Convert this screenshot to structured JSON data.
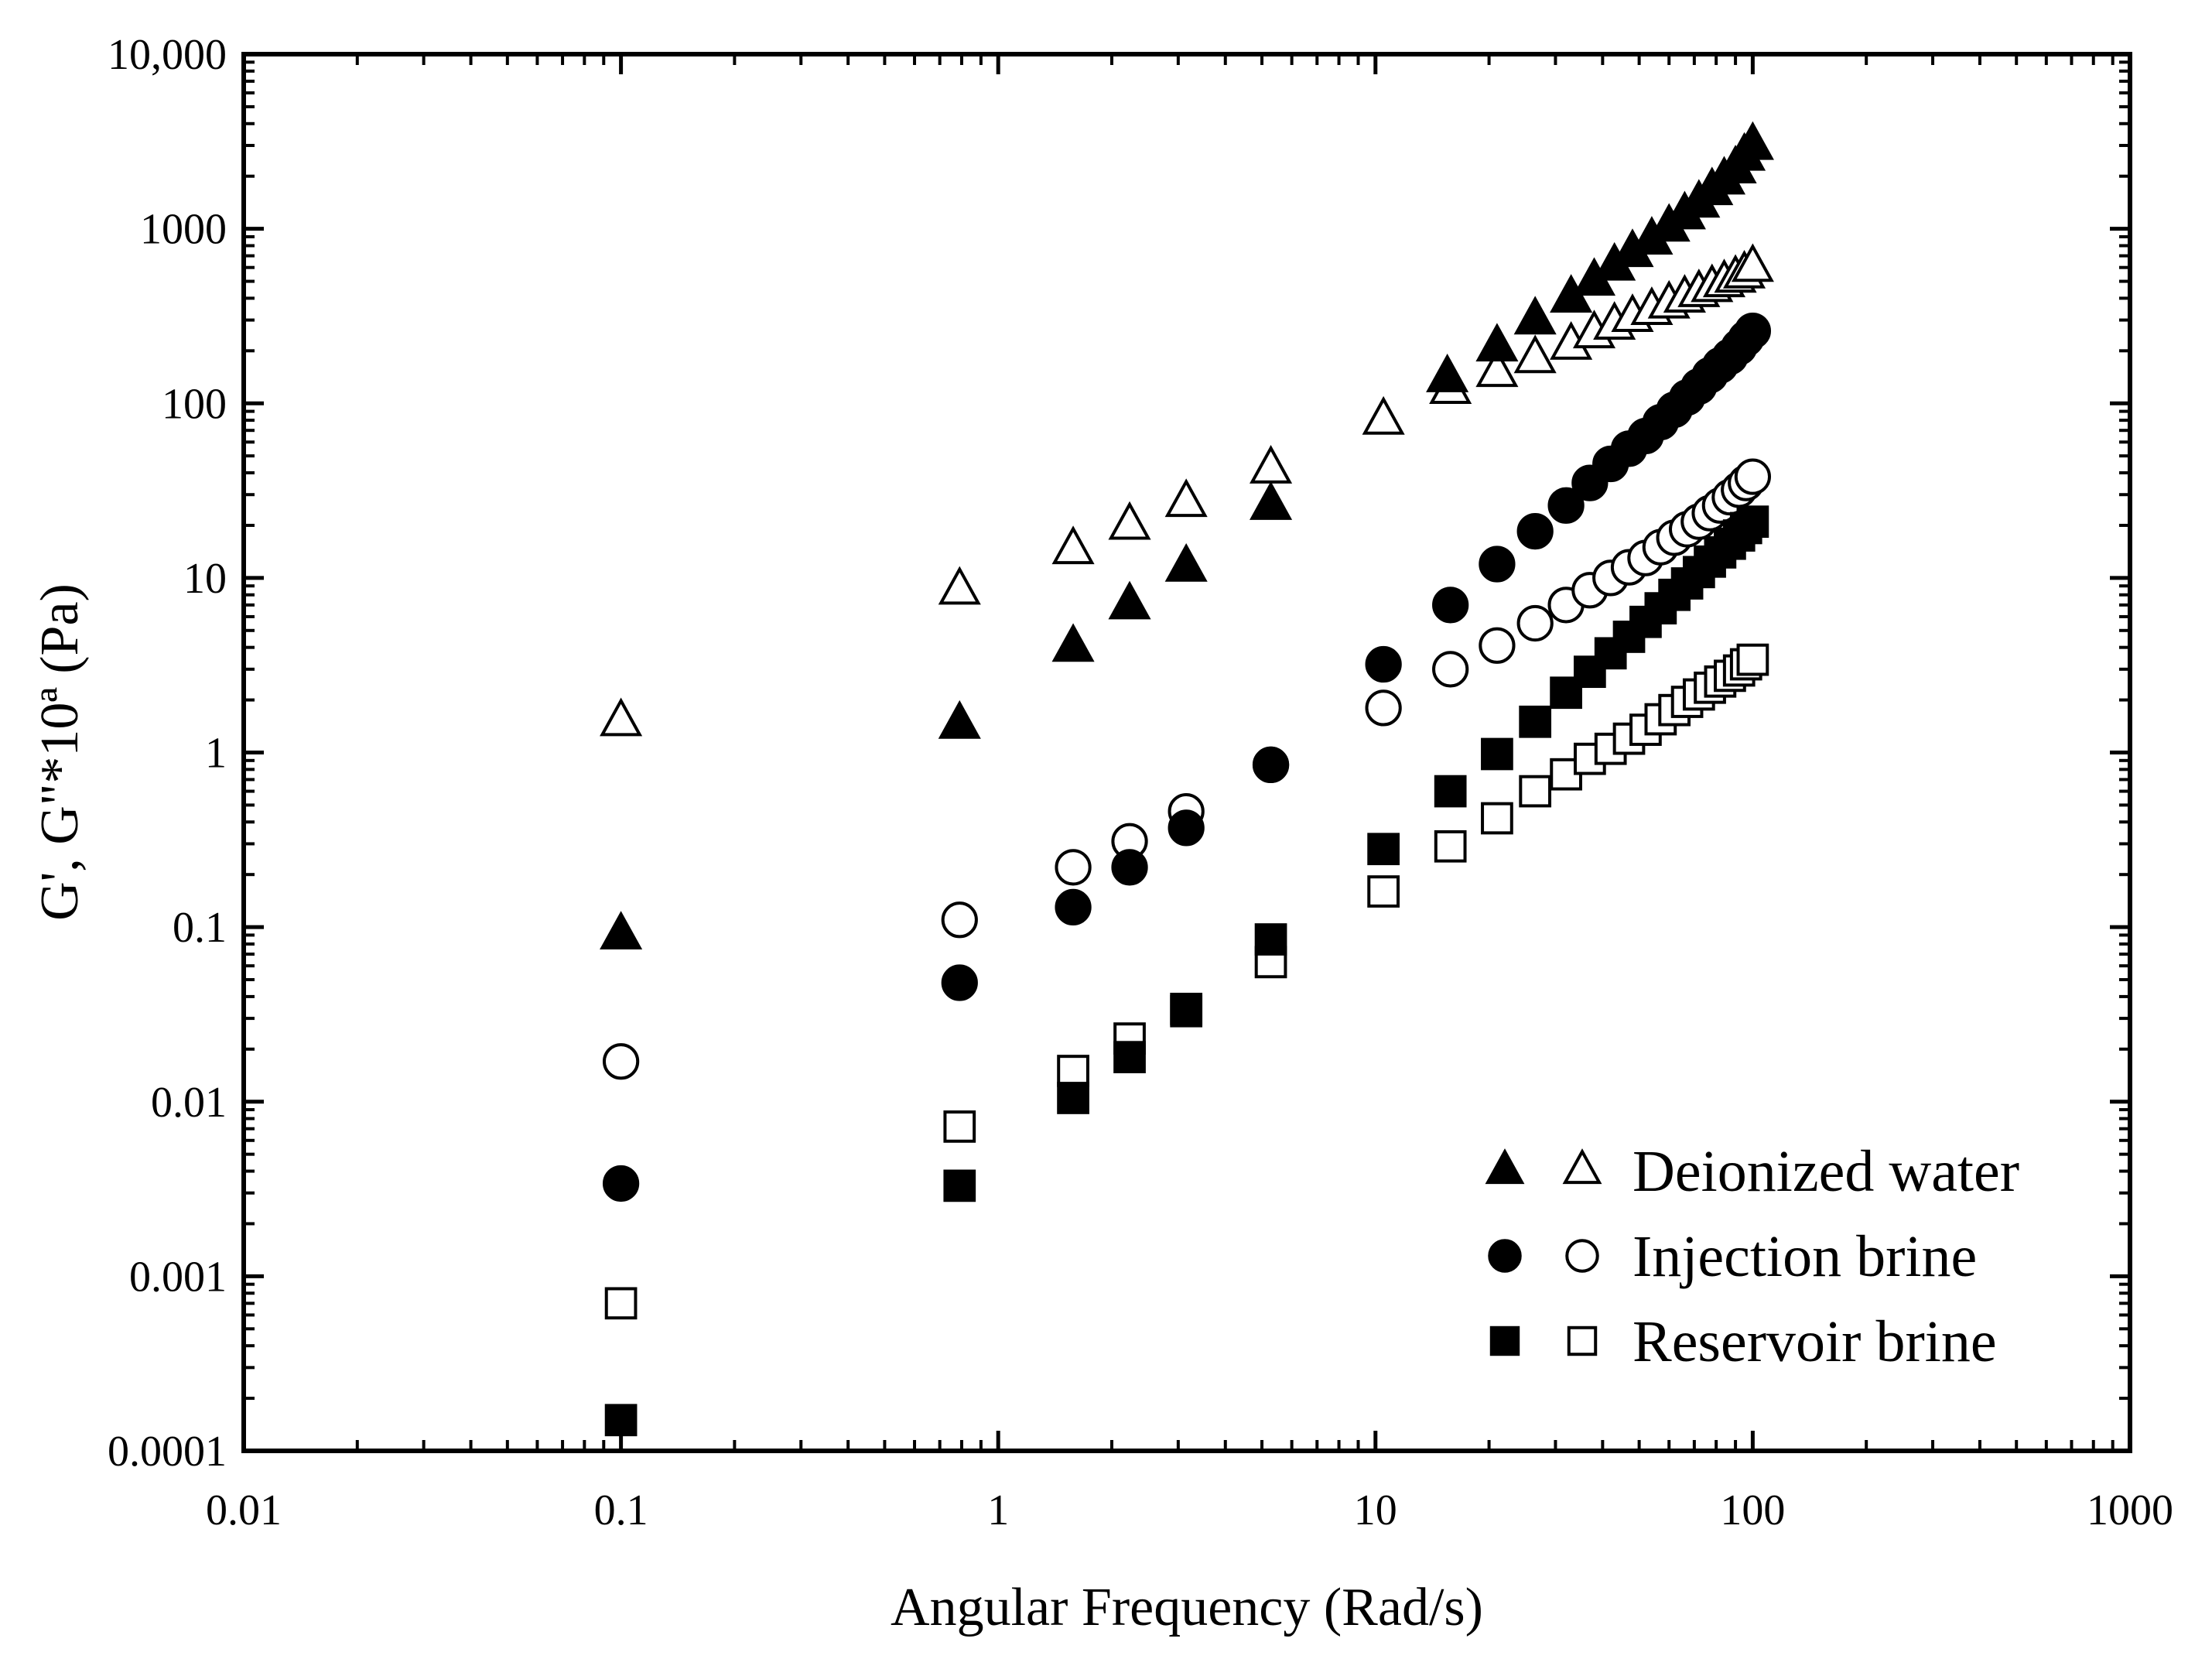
{
  "chart_data": {
    "type": "scatter",
    "title": "",
    "xlabel": "Angular Frequency (Rad/s)",
    "ylabel": "G', G\"*10ª (Pa)",
    "xscale": "log",
    "yscale": "log",
    "xlim": [
      0.01,
      1000
    ],
    "ylim": [
      0.0001,
      10000
    ],
    "x_ticks": [
      0.01,
      0.1,
      1,
      10,
      100,
      1000
    ],
    "x_tick_labels": [
      "0.01",
      "0.1",
      "1",
      "10",
      "100",
      "1000"
    ],
    "y_ticks": [
      0.0001,
      0.001,
      0.01,
      0.1,
      1,
      10,
      100,
      1000,
      10000
    ],
    "y_tick_labels": [
      "0.0001",
      "0.001",
      "0.01",
      "0.1",
      "1",
      "10",
      "100",
      "1000",
      "10,000"
    ],
    "grid": false,
    "legend_position": "bottom-right",
    "legend": [
      {
        "label": "Deionized water",
        "markers": [
          "triangle-filled",
          "triangle-open"
        ]
      },
      {
        "label": "Injection brine",
        "markers": [
          "circle-filled",
          "circle-open"
        ]
      },
      {
        "label": "Reservoir brine",
        "markers": [
          "square-filled",
          "square-open"
        ]
      }
    ],
    "series": [
      {
        "name": "Deionized water G'",
        "marker": "triangle-filled",
        "x": [
          0.1,
          0.79,
          1.58,
          2.23,
          3.15,
          5.28,
          15.5,
          21,
          26.5,
          33,
          38,
          43,
          48,
          54,
          60,
          66,
          72,
          78,
          84,
          90,
          95,
          100
        ],
        "y": [
          0.09,
          1.45,
          4,
          7,
          11.5,
          26,
          140,
          210,
          300,
          400,
          500,
          610,
          730,
          860,
          1020,
          1200,
          1400,
          1650,
          1900,
          2200,
          2600,
          3000
        ]
      },
      {
        "name": "Deionized water G\"",
        "marker": "triangle-open",
        "x": [
          0.1,
          0.79,
          1.58,
          2.23,
          3.15,
          5.28,
          10.5,
          15.8,
          21,
          26.5,
          33,
          38,
          43,
          48,
          54,
          60,
          66,
          72,
          78,
          84,
          90,
          95,
          100
        ],
        "y": [
          1.5,
          8.5,
          14.5,
          20,
          27,
          42,
          80,
          120,
          150,
          180,
          215,
          250,
          280,
          310,
          340,
          370,
          400,
          430,
          460,
          490,
          520,
          550,
          600
        ]
      },
      {
        "name": "Injection brine G'",
        "marker": "circle-filled",
        "x": [
          0.1,
          0.79,
          1.58,
          2.23,
          3.15,
          5.28,
          10.5,
          15.8,
          21,
          26.5,
          32,
          37,
          42,
          47,
          52,
          57,
          62,
          67,
          72,
          77,
          82,
          87,
          92,
          96,
          100
        ],
        "y": [
          0.0034,
          0.048,
          0.13,
          0.22,
          0.37,
          0.85,
          3.2,
          7,
          12,
          18.5,
          26,
          35,
          45,
          55,
          65,
          78,
          92,
          108,
          125,
          145,
          165,
          185,
          210,
          235,
          260
        ]
      },
      {
        "name": "Injection brine G\"",
        "marker": "circle-open",
        "x": [
          0.1,
          0.79,
          1.58,
          2.23,
          3.15,
          5.28,
          10.5,
          15.8,
          21,
          26.5,
          32,
          37,
          42,
          47,
          52,
          57,
          62,
          67,
          72,
          77,
          82,
          87,
          92,
          96,
          100
        ],
        "y": [
          0.017,
          0.11,
          0.22,
          0.31,
          0.46,
          0.85,
          1.8,
          3,
          4.1,
          5.5,
          7,
          8.5,
          10,
          11.5,
          13,
          15,
          17,
          19,
          21,
          23.5,
          26,
          29,
          32,
          35,
          38
        ]
      },
      {
        "name": "Reservoir brine G'",
        "marker": "square-filled",
        "x": [
          0.1,
          0.79,
          1.58,
          2.23,
          3.15,
          5.28,
          10.5,
          15.8,
          21,
          26.5,
          32,
          37,
          42,
          47,
          52,
          57,
          62,
          67,
          72,
          77,
          82,
          87,
          92,
          96,
          100
        ],
        "y": [
          0.00015,
          0.0033,
          0.0105,
          0.018,
          0.034,
          0.085,
          0.28,
          0.6,
          0.98,
          1.5,
          2.2,
          2.9,
          3.7,
          4.6,
          5.6,
          6.7,
          8,
          9.3,
          10.8,
          12.4,
          14,
          15.7,
          17.5,
          19.3,
          21
        ]
      },
      {
        "name": "Reservoir brine G\"",
        "marker": "square-open",
        "x": [
          0.1,
          0.79,
          1.58,
          2.23,
          3.15,
          5.28,
          10.5,
          15.8,
          21,
          26.5,
          32,
          37,
          42,
          47,
          52,
          57,
          62,
          67,
          72,
          77,
          82,
          87,
          92,
          96,
          100
        ],
        "y": [
          0.0007,
          0.0072,
          0.015,
          0.023,
          0.033,
          0.063,
          0.16,
          0.29,
          0.42,
          0.6,
          0.75,
          0.92,
          1.05,
          1.2,
          1.35,
          1.55,
          1.75,
          1.95,
          2.15,
          2.35,
          2.55,
          2.75,
          2.95,
          3.2,
          3.4
        ]
      }
    ]
  }
}
